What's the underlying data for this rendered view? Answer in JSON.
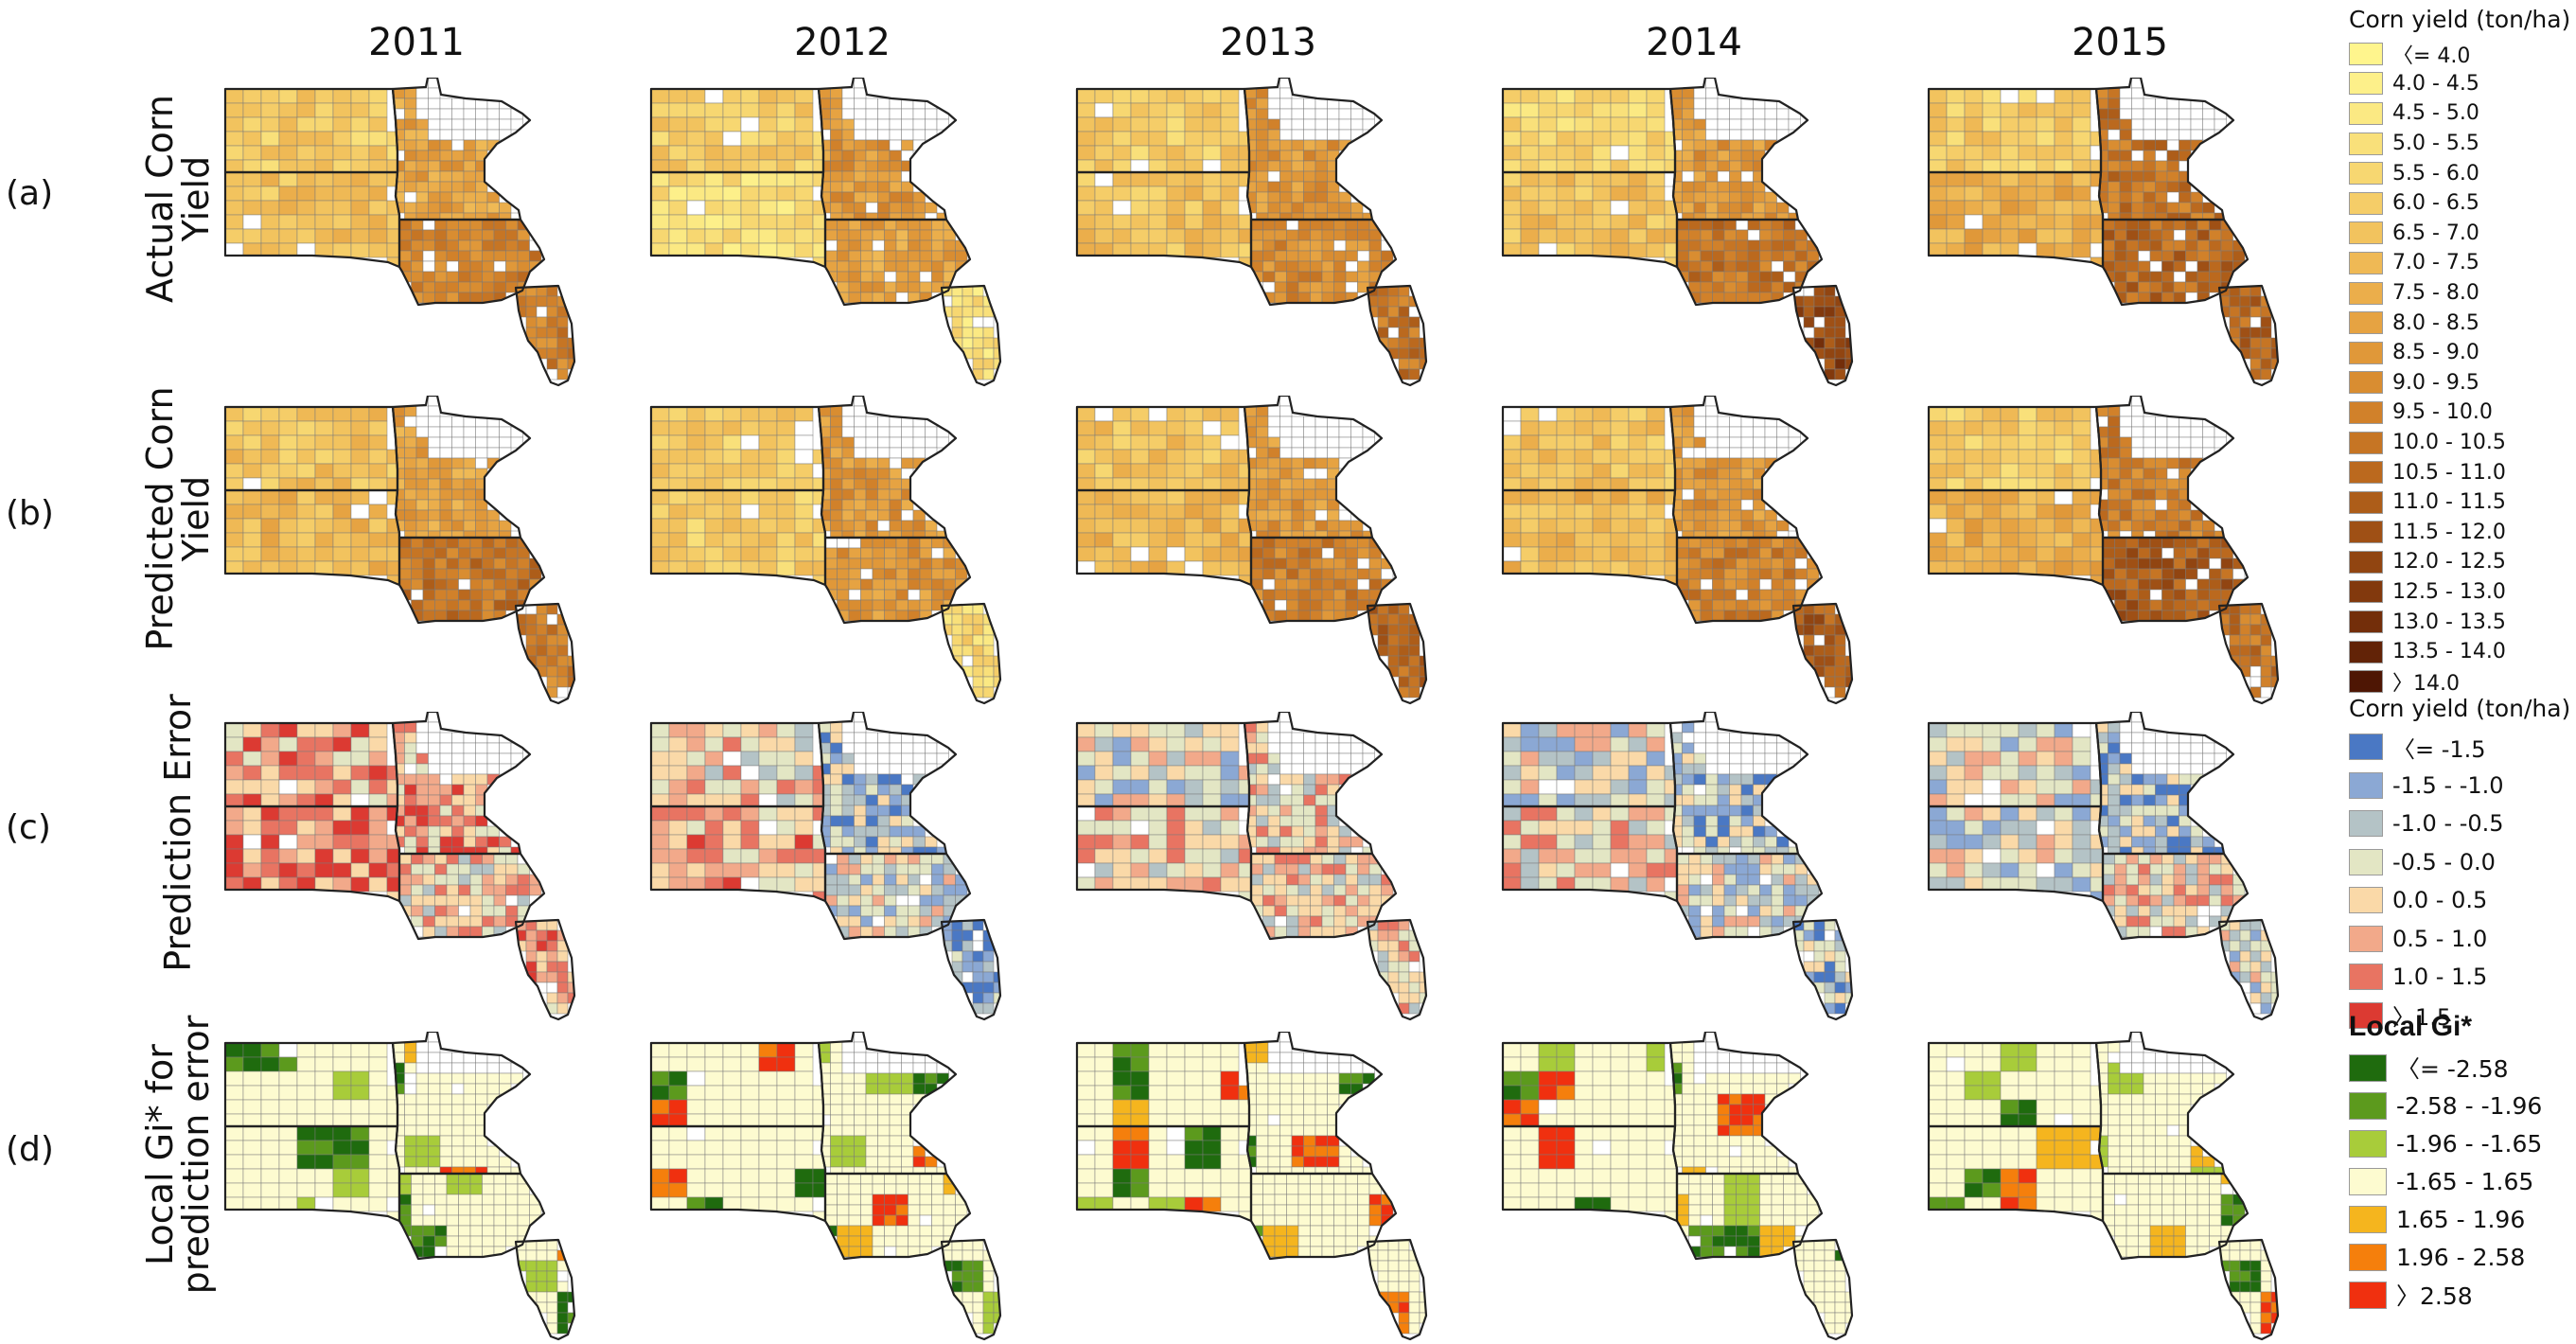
{
  "figure": {
    "years": [
      "2011",
      "2012",
      "2013",
      "2014",
      "2015"
    ],
    "rows": [
      {
        "tag": "(a)",
        "title": "Actual Corn Yield",
        "legend": "yield"
      },
      {
        "tag": "(b)",
        "title": "Predicted Corn\nYield",
        "legend": "yield"
      },
      {
        "tag": "(c)",
        "title": "Prediction Error",
        "legend": "error"
      },
      {
        "tag": "(d)",
        "title": "Local Gi* for\nprediction error",
        "legend": "gi"
      }
    ]
  },
  "legends": {
    "yield": {
      "title": "Corn yield (ton/ha)",
      "items": [
        {
          "label": "〈= 4.0",
          "color": "#fff58d"
        },
        {
          "label": "4.0 - 4.5",
          "color": "#fdf08a"
        },
        {
          "label": "4.5 - 5.0",
          "color": "#fbe983"
        },
        {
          "label": "5.0 - 5.5",
          "color": "#f9e07a"
        },
        {
          "label": "5.5 - 6.0",
          "color": "#f7d771"
        },
        {
          "label": "6.0 - 6.5",
          "color": "#f5cd68"
        },
        {
          "label": "6.5 - 7.0",
          "color": "#f2c35e"
        },
        {
          "label": "7.0 - 7.5",
          "color": "#efb955"
        },
        {
          "label": "7.5 - 8.0",
          "color": "#ebae4b"
        },
        {
          "label": "8.0 - 8.5",
          "color": "#e6a342"
        },
        {
          "label": "8.5 - 9.0",
          "color": "#e09839"
        },
        {
          "label": "9.0 - 9.5",
          "color": "#d98d31"
        },
        {
          "label": "9.5 - 10.0",
          "color": "#d1812a"
        },
        {
          "label": "10.0 - 10.5",
          "color": "#c67524"
        },
        {
          "label": "10.5 - 11.0",
          "color": "#bb691e"
        },
        {
          "label": "11.0 - 11.5",
          "color": "#ad5d19"
        },
        {
          "label": "11.5 - 12.0",
          "color": "#9f5015"
        },
        {
          "label": "12.0 - 12.5",
          "color": "#914511"
        },
        {
          "label": "12.5 - 13.0",
          "color": "#82390d"
        },
        {
          "label": "13.0 - 13.5",
          "color": "#732e0a"
        },
        {
          "label": "13.5 - 14.0",
          "color": "#622307"
        },
        {
          "label": "〉14.0",
          "color": "#4e1604"
        }
      ]
    },
    "error": {
      "title": "Corn yield (ton/ha)",
      "items": [
        {
          "label": "〈= -1.5",
          "color": "#4a78c4"
        },
        {
          "label": "-1.5 - -1.0",
          "color": "#8ba8d4"
        },
        {
          "label": "-1.0 - -0.5",
          "color": "#b4c3c6"
        },
        {
          "label": "-0.5 - 0.0",
          "color": "#e3e6c4"
        },
        {
          "label": "0.0 - 0.5",
          "color": "#fad9a8"
        },
        {
          "label": "0.5 - 1.0",
          "color": "#f2a98a"
        },
        {
          "label": "1.0 - 1.5",
          "color": "#e87462"
        },
        {
          "label": "〉1.5",
          "color": "#dc3a32"
        }
      ]
    },
    "gi": {
      "title": "Local Gi*",
      "items": [
        {
          "label": "〈= -2.58",
          "color": "#1f6b0e"
        },
        {
          "label": "-2.58 - -1.96",
          "color": "#5c9a1d"
        },
        {
          "label": "-1.96 - -1.65",
          "color": "#a8cc3a"
        },
        {
          "label": "-1.65 - 1.65",
          "color": "#fdfbd0"
        },
        {
          "label": "1.65 - 1.96",
          "color": "#f5b51e"
        },
        {
          "label": "1.96 - 2.58",
          "color": "#f57f0c"
        },
        {
          "label": "〉2.58",
          "color": "#f0300f"
        }
      ]
    }
  },
  "map_data": {
    "description_keys": [
      "state_avg_class_index"
    ],
    "states": [
      "ND",
      "SD",
      "MN",
      "IA",
      "IL"
    ],
    "yield_actual": {
      "2011": {
        "ND": 5,
        "SD": 6,
        "MN": 9,
        "IA": 12,
        "IL": 12
      },
      "2012": {
        "ND": 5,
        "SD": 3,
        "MN": 10,
        "IA": 9,
        "IL": 3
      },
      "2013": {
        "ND": 5,
        "SD": 6,
        "MN": 10,
        "IA": 11,
        "IL": 13
      },
      "2014": {
        "ND": 4,
        "SD": 6,
        "MN": 10,
        "IA": 13,
        "IL": 17
      },
      "2015": {
        "ND": 5,
        "SD": 8,
        "MN": 13,
        "IA": 14,
        "IL": 14
      }
    },
    "yield_predicted": {
      "2011": {
        "ND": 6,
        "SD": 7,
        "MN": 9,
        "IA": 13,
        "IL": 12
      },
      "2012": {
        "ND": 5,
        "SD": 5,
        "MN": 10,
        "IA": 10,
        "IL": 4
      },
      "2013": {
        "ND": 6,
        "SD": 7,
        "MN": 10,
        "IA": 12,
        "IL": 14
      },
      "2014": {
        "ND": 6,
        "SD": 7,
        "MN": 10,
        "IA": 12,
        "IL": 15
      },
      "2015": {
        "ND": 5,
        "SD": 8,
        "MN": 12,
        "IA": 15,
        "IL": 13
      }
    },
    "error": {
      "2011": {
        "ND": 5,
        "SD": 6,
        "MN": 5,
        "IA": 4,
        "IL": 5
      },
      "2012": {
        "ND": 4,
        "SD": 5,
        "MN": 2,
        "IA": 3,
        "IL": 1
      },
      "2013": {
        "ND": 3,
        "SD": 4,
        "MN": 4,
        "IA": 4,
        "IL": 4
      },
      "2014": {
        "ND": 3,
        "SD": 4,
        "MN": 2,
        "IA": 3,
        "IL": 2
      },
      "2015": {
        "ND": 3,
        "SD": 3,
        "MN": 2,
        "IA": 4,
        "IL": 3
      }
    },
    "gi": {
      "2011": {
        "ND": 3,
        "SD": 3,
        "MN": 3,
        "IA": 3,
        "IL": 3
      },
      "2012": {
        "ND": 3,
        "SD": 3,
        "MN": 3,
        "IA": 3,
        "IL": 3
      },
      "2013": {
        "ND": 3,
        "SD": 3,
        "MN": 3,
        "IA": 3,
        "IL": 3
      },
      "2014": {
        "ND": 3,
        "SD": 3,
        "MN": 3,
        "IA": 3,
        "IL": 3
      },
      "2015": {
        "ND": 3,
        "SD": 3,
        "MN": 3,
        "IA": 3,
        "IL": 3
      }
    }
  }
}
